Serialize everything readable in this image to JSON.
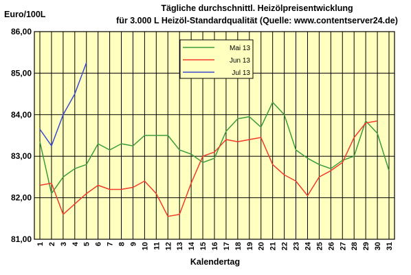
{
  "chart_data": {
    "type": "line",
    "title": "Tägliche durchschnittl. Heizölpreisentwicklung",
    "subtitle": "für 3.000 L Heizöl-Standardqualität (Quelle: www.contentserver24.de)",
    "ylabel": "Euro/100L",
    "xlabel": "Kalendertag",
    "ylim": [
      81,
      86
    ],
    "y_ticks": [
      "81,00",
      "82,00",
      "83,00",
      "84,00",
      "85,00",
      "86,00"
    ],
    "x": [
      1,
      2,
      3,
      4,
      5,
      6,
      7,
      8,
      9,
      10,
      11,
      12,
      13,
      14,
      15,
      16,
      17,
      18,
      19,
      20,
      21,
      22,
      23,
      24,
      25,
      26,
      27,
      28,
      29,
      30,
      31
    ],
    "grid": true,
    "legend_position": "top-center",
    "background_color": "#ffffc0",
    "series": [
      {
        "name": "Mai 13",
        "color": "#3a9a3a",
        "values": [
          83.35,
          82.1,
          82.5,
          82.7,
          82.8,
          83.3,
          83.15,
          83.3,
          83.25,
          83.5,
          83.5,
          83.5,
          83.15,
          83.05,
          82.85,
          82.95,
          83.6,
          83.9,
          83.95,
          83.7,
          84.3,
          84.0,
          83.15,
          82.95,
          82.8,
          82.7,
          82.9,
          83.0,
          83.85,
          83.55,
          82.65
        ]
      },
      {
        "name": "Jun 13",
        "color": "#f03a2a",
        "values": [
          82.3,
          82.35,
          81.6,
          81.85,
          82.1,
          82.3,
          82.2,
          82.2,
          82.25,
          82.4,
          82.1,
          81.55,
          81.6,
          82.35,
          83.0,
          83.1,
          83.4,
          83.35,
          83.4,
          83.45,
          82.8,
          82.55,
          82.4,
          82.05,
          82.5,
          82.65,
          82.85,
          83.45,
          83.8,
          83.85,
          null
        ]
      },
      {
        "name": "Jul 13",
        "color": "#3a4ad0",
        "values": [
          83.65,
          83.25,
          84.0,
          84.5,
          85.25,
          null,
          null,
          null,
          null,
          null,
          null,
          null,
          null,
          null,
          null,
          null,
          null,
          null,
          null,
          null,
          null,
          null,
          null,
          null,
          null,
          null,
          null,
          null,
          null,
          null,
          null
        ]
      }
    ]
  }
}
